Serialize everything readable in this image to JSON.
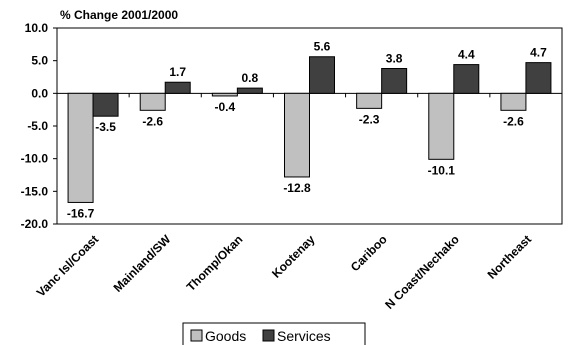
{
  "chart_data": {
    "type": "bar",
    "title": "% Change 2001/2000",
    "categories": [
      "Vanc Isl/Coast",
      "Mainland/SW",
      "Thomp/Okan",
      "Kootenay",
      "Cariboo",
      "N Coast/Nechako",
      "Northeast"
    ],
    "series": [
      {
        "name": "Goods",
        "values": [
          -16.7,
          -2.6,
          -0.4,
          -12.8,
          -2.3,
          -10.1,
          -2.6
        ],
        "color": "#c0c0c0"
      },
      {
        "name": "Services",
        "values": [
          -3.5,
          1.7,
          0.8,
          5.6,
          3.8,
          4.4,
          4.7
        ],
        "color": "#404040"
      }
    ],
    "data_labels": [
      [
        "-16.7",
        "-2.6",
        "-0.4",
        "-12.8",
        "-2.3",
        "-10.1",
        "-2.6"
      ],
      [
        "-3.5",
        "1.7",
        "0.8",
        "5.6",
        "3.8",
        "4.4",
        "4.7"
      ]
    ],
    "ylim": [
      -20,
      10
    ],
    "yticks": [
      10,
      5,
      0,
      -5,
      -10,
      -15,
      -20
    ],
    "ytick_labels": [
      "10.0",
      "5.0",
      "0.0",
      "-5.0",
      "-10.0",
      "-15.0",
      "-20.0"
    ],
    "grid": false,
    "legend_position": "bottom"
  }
}
